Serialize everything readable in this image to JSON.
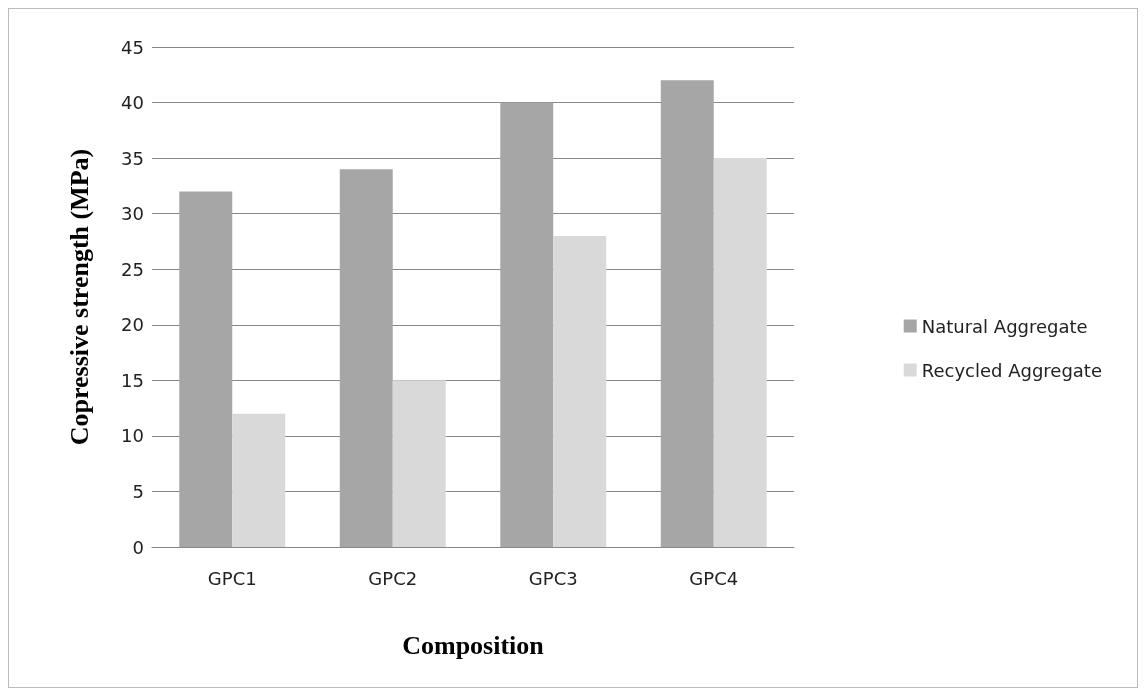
{
  "chart_data": {
    "type": "bar",
    "xlabel": "Composition",
    "ylabel": "Copressive strength (MPa)",
    "categories": [
      "GPC1",
      "GPC2",
      "GPC3",
      "GPC4"
    ],
    "series": [
      {
        "name": "Natural Aggregate",
        "color": "#a6a6a6",
        "values": [
          32,
          34,
          40,
          42
        ]
      },
      {
        "name": "Recycled Aggregate",
        "color": "#d9d9d9",
        "values": [
          12,
          15,
          28,
          35
        ]
      }
    ],
    "ylim": [
      0,
      45
    ],
    "yticks": [
      0,
      5,
      10,
      15,
      20,
      25,
      30,
      35,
      40,
      45
    ],
    "grid": "y",
    "legend": "right"
  }
}
